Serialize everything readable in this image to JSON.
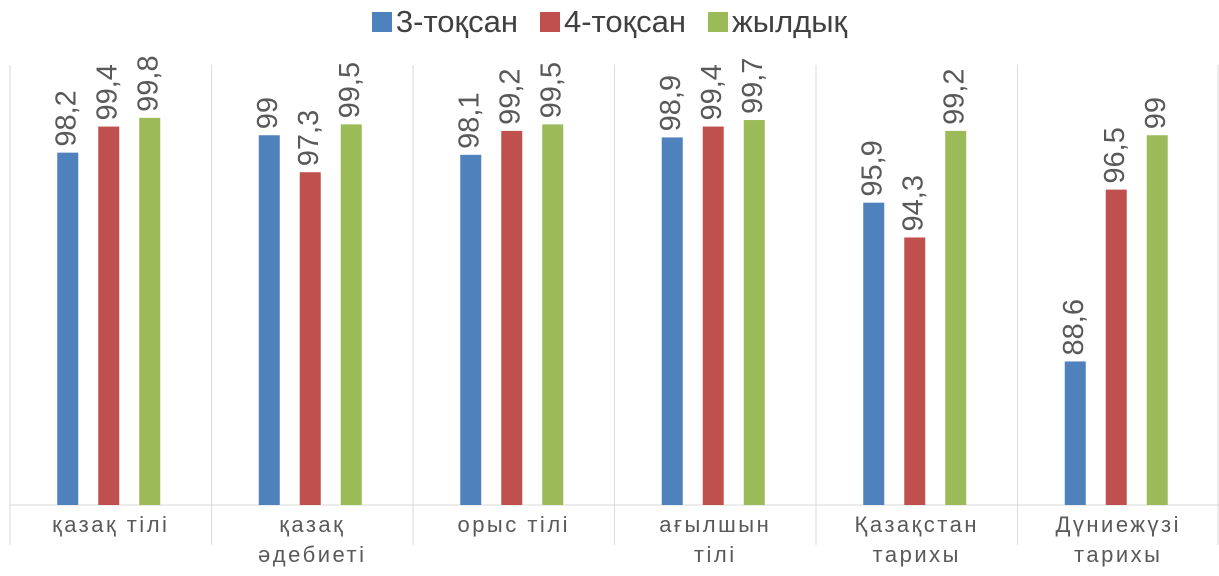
{
  "chart_data": {
    "type": "bar",
    "categories": [
      "қазақ тілі",
      "қазақ\nәдебиеті",
      "орыс тілі",
      "ағылшын\nтілі",
      "Қазақстан\nтарихы",
      "Дүниежүзі\nтарихы"
    ],
    "series": [
      {
        "name": "3-тоқсан",
        "color": "#4f81bd",
        "values": [
          98.2,
          99,
          98.1,
          98.9,
          95.9,
          88.6
        ],
        "value_labels": [
          "98,2",
          "99",
          "98,1",
          "98,9",
          "95,9",
          "88,6"
        ]
      },
      {
        "name": "4-тоқсан",
        "color": "#c0504d",
        "values": [
          99.4,
          97.3,
          99.2,
          99.4,
          94.3,
          96.5
        ],
        "value_labels": [
          "99,4",
          "97,3",
          "99,2",
          "99,4",
          "94,3",
          "96,5"
        ]
      },
      {
        "name": "жылдық",
        "color": "#9bbb59",
        "values": [
          99.8,
          99.5,
          99.5,
          99.7,
          99.2,
          99
        ],
        "value_labels": [
          "99,8",
          "99,5",
          "99,5",
          "99,7",
          "99,2",
          "99"
        ]
      }
    ],
    "ylim": [
      82,
      102
    ],
    "legend": "top"
  }
}
